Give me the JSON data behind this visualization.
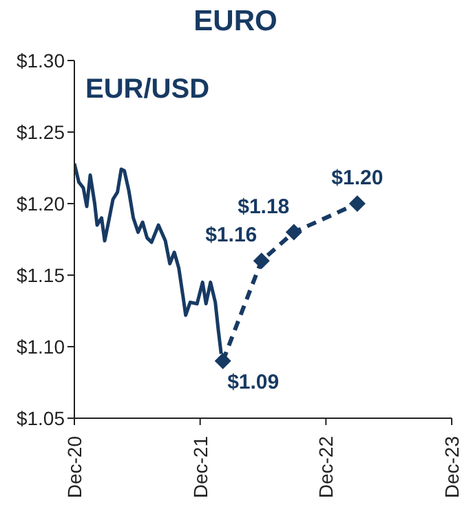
{
  "chart_data": {
    "type": "line",
    "title": "EURO",
    "subtitle": "EUR/USD",
    "xlim": [
      "2020-12",
      "2023-12"
    ],
    "xticks": [
      {
        "value": "2020-12",
        "label": "Dec-20"
      },
      {
        "value": "2021-12",
        "label": "Dec-21"
      },
      {
        "value": "2022-12",
        "label": "Dec-22"
      },
      {
        "value": "2023-12",
        "label": "Dec-23"
      }
    ],
    "ylim": [
      1.05,
      1.3
    ],
    "yticks": [
      {
        "value": 1.05,
        "label": "$1.05"
      },
      {
        "value": 1.1,
        "label": "$1.10"
      },
      {
        "value": 1.15,
        "label": "$1.15"
      },
      {
        "value": 1.2,
        "label": "$1.20"
      },
      {
        "value": 1.25,
        "label": "$1.25"
      },
      {
        "value": 1.3,
        "label": "$1.30"
      }
    ],
    "series": [
      {
        "color": "#173a63",
        "marker": "none",
        "line_style": "solid",
        "x": [
          "2020-12-01",
          "2020-12-14",
          "2020-12-27",
          "2021-01-06",
          "2021-01-16",
          "2021-01-29",
          "2021-02-05",
          "2021-02-18",
          "2021-02-27",
          "2021-03-10",
          "2021-03-23",
          "2021-04-05",
          "2021-04-16",
          "2021-04-25",
          "2021-05-08",
          "2021-05-21",
          "2021-06-04",
          "2021-06-17",
          "2021-06-30",
          "2021-07-13",
          "2021-08-02",
          "2021-08-22",
          "2021-09-04",
          "2021-09-17",
          "2021-09-30",
          "2021-10-13",
          "2021-10-20",
          "2021-11-02",
          "2021-11-22",
          "2021-12-08",
          "2021-12-18",
          "2021-12-31",
          "2022-01-14",
          "2022-01-23",
          "2022-01-31"
        ],
        "values": [
          1.228,
          1.215,
          1.211,
          1.198,
          1.22,
          1.2,
          1.185,
          1.19,
          1.174,
          1.187,
          1.203,
          1.208,
          1.224,
          1.223,
          1.209,
          1.19,
          1.18,
          1.187,
          1.176,
          1.173,
          1.185,
          1.174,
          1.158,
          1.166,
          1.155,
          1.134,
          1.122,
          1.131,
          1.13,
          1.145,
          1.13,
          1.145,
          1.131,
          1.111,
          1.095
        ]
      },
      {
        "color": "#173a63",
        "marker": "diamond",
        "line_style": "dashed",
        "x": [
          "2022-02-05",
          "2022-05-28",
          "2022-08-30",
          "2023-03-02"
        ],
        "values": [
          1.09,
          1.16,
          1.18,
          1.2
        ],
        "value_labels": [
          "$1.09",
          "$1.16",
          "$1.18",
          "$1.20"
        ]
      }
    ]
  }
}
